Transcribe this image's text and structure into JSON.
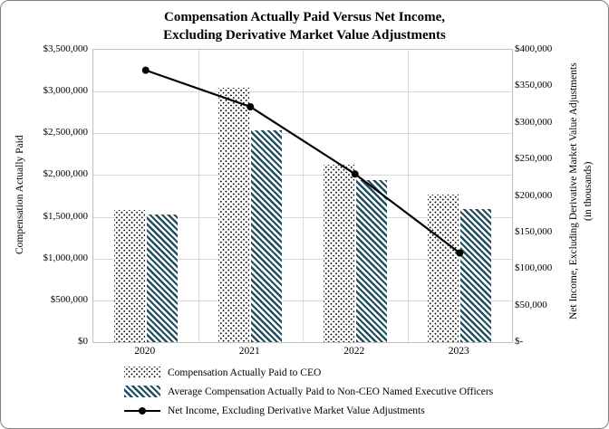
{
  "chart_data": {
    "type": "bar",
    "combo": "bar+line",
    "title_lines": [
      "Compensation Actually Paid Versus Net Income,",
      "Excluding Derivative Market Value Adjustments"
    ],
    "categories": [
      "2020",
      "2021",
      "2022",
      "2023"
    ],
    "series": [
      {
        "name": "Compensation Actually Paid to CEO",
        "type": "bar",
        "axis": "left",
        "pattern": "dots",
        "color": "#000000",
        "values": [
          1580000,
          3050000,
          2120000,
          1770000
        ]
      },
      {
        "name": "Average Compensation Actually Paid to Non-CEO Named Executive Officers",
        "type": "bar",
        "axis": "left",
        "pattern": "diagonal-hatch",
        "color": "#1F4E5F",
        "values": [
          1525000,
          2540000,
          1945000,
          1590000
        ]
      },
      {
        "name": "Net Income, Excluding Derivative Market Value Adjustments",
        "type": "line",
        "axis": "right",
        "marker": "circle",
        "color": "#000000",
        "values": [
          372000,
          322000,
          230000,
          122000
        ]
      }
    ],
    "left_axis": {
      "title": "Compensation Actually Paid",
      "min": 0,
      "max": 3500000,
      "step": 500000,
      "tick_labels_top_to_bottom": [
        "$3,500,000",
        "$3,000,000",
        "$2,500,000",
        "$2,000,000",
        "$1,500,000",
        "$1,000,000",
        "$500,000",
        "$0"
      ]
    },
    "right_axis": {
      "title_lines": [
        "Net Income, Excluding Derivative Market Value Adjustments",
        "(in thousands)"
      ],
      "min": 0,
      "max": 400000,
      "step": 50000,
      "tick_labels_top_to_bottom": [
        "$400,000",
        "$350,000",
        "$300,000",
        "$250,000",
        "$200,000",
        "$150,000",
        "$100,000",
        "$50,000",
        "$-"
      ]
    },
    "legend_position": "bottom-left",
    "grid": true
  },
  "colors": {
    "hatch": "#1F4E5F",
    "line": "#000000",
    "marker": "#000000",
    "gridline": "#D9D9D9",
    "axis_line": "#BFBFBF",
    "text": "#000000",
    "border": "#808080",
    "background": "#FFFFFF"
  }
}
